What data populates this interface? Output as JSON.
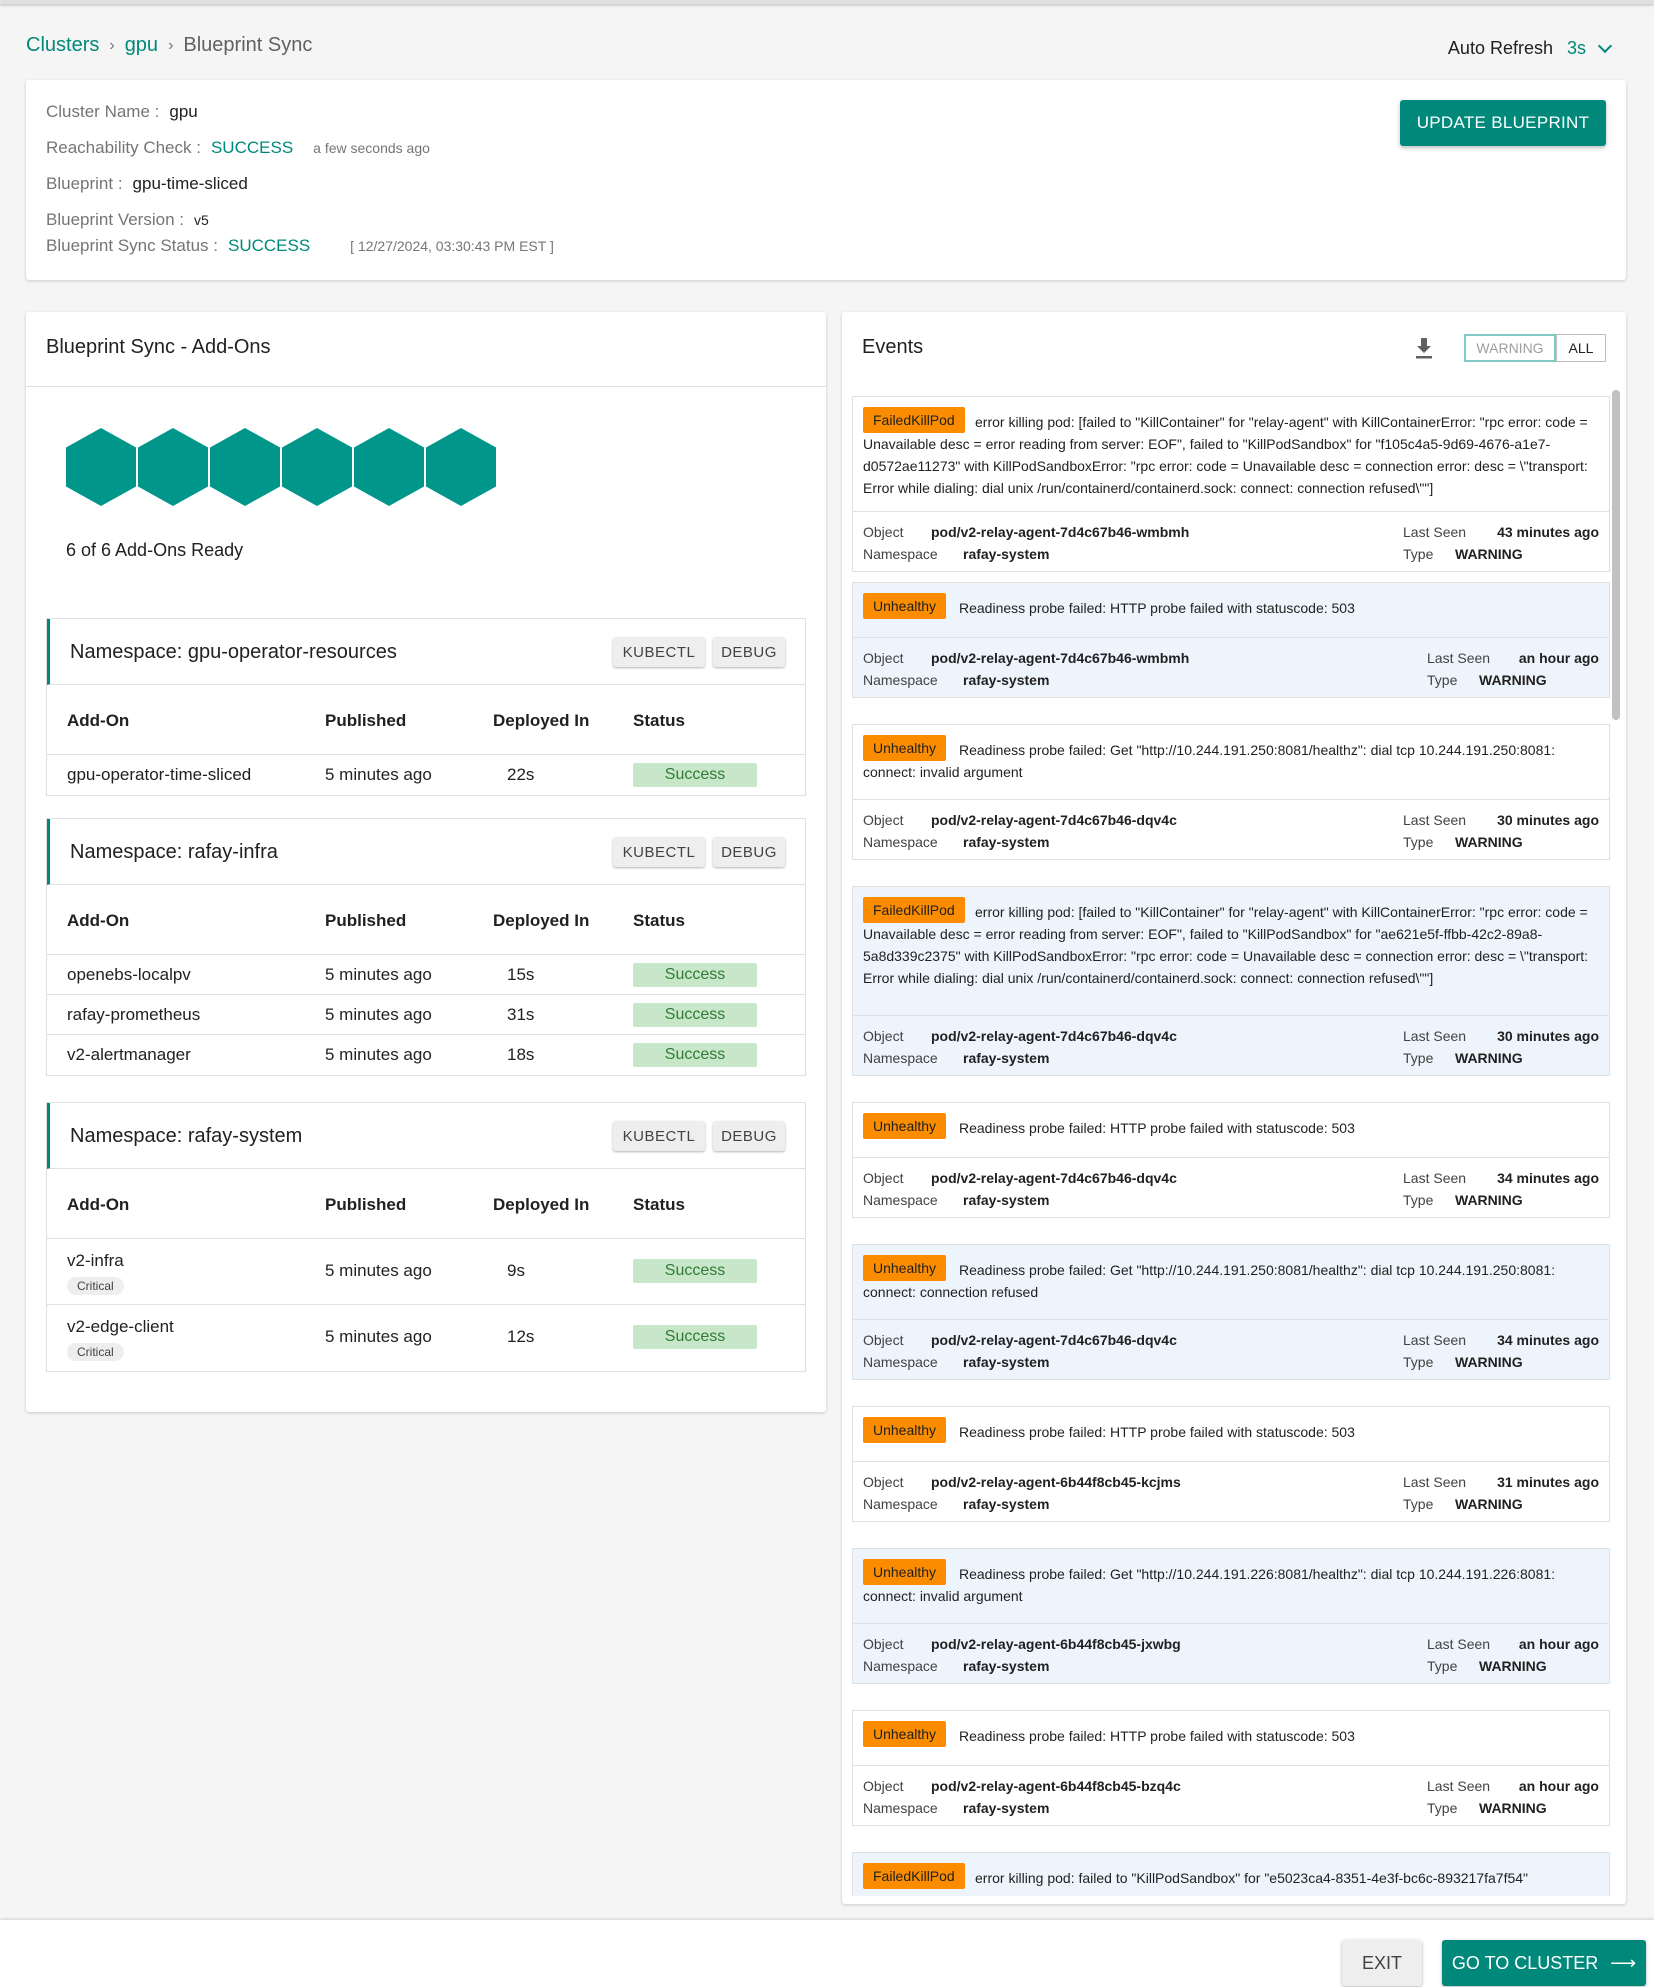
{
  "breadcrumb": {
    "clusters": "Clusters",
    "cluster": "gpu",
    "current": "Blueprint Sync",
    "sep": "›"
  },
  "auto_refresh": {
    "label": "Auto Refresh",
    "value": "3s"
  },
  "cluster_info": {
    "name_label": "Cluster Name :",
    "name": "gpu",
    "reach_label": "Reachability Check :",
    "reach_status": "SUCCESS",
    "reach_time": "a few seconds ago",
    "blueprint_label": "Blueprint :",
    "blueprint": "gpu-time-sliced",
    "version_label": "Blueprint Version :",
    "version": "v5",
    "sync_label": "Blueprint Sync Status :",
    "sync_status": "SUCCESS",
    "sync_time": "[ 12/27/2024, 03:30:43 PM EST ]",
    "update_button": "UPDATE BLUEPRINT"
  },
  "addons": {
    "title": "Blueprint Sync - Add-Ons",
    "ready_text": "6 of 6 Add-Ons Ready",
    "hex_count": 6,
    "hex_color": "#00968a",
    "kubectl_label": "KUBECTL",
    "debug_label": "DEBUG",
    "headers": {
      "addon": "Add-On",
      "published": "Published",
      "deployed": "Deployed In",
      "status": "Status"
    },
    "namespaces": [
      {
        "title": "Namespace: gpu-operator-resources",
        "rows": [
          {
            "name": "gpu-operator-time-sliced",
            "published": "5 minutes ago",
            "deployed": "22s",
            "status": "Success"
          }
        ]
      },
      {
        "title": "Namespace: rafay-infra",
        "rows": [
          {
            "name": "openebs-localpv",
            "published": "5 minutes ago",
            "deployed": "15s",
            "status": "Success"
          },
          {
            "name": "rafay-prometheus",
            "published": "5 minutes ago",
            "deployed": "31s",
            "status": "Success"
          },
          {
            "name": "v2-alertmanager",
            "published": "5 minutes ago",
            "deployed": "18s",
            "status": "Success"
          }
        ]
      },
      {
        "title": "Namespace: rafay-system",
        "rows": [
          {
            "name": "v2-infra",
            "badge": "Critical",
            "published": "5 minutes ago",
            "deployed": "9s",
            "status": "Success"
          },
          {
            "name": "v2-edge-client",
            "badge": "Critical",
            "published": "5 minutes ago",
            "deployed": "12s",
            "status": "Success"
          }
        ]
      }
    ]
  },
  "events": {
    "title": "Events",
    "filter_warning": "WARNING",
    "filter_all": "ALL",
    "labels": {
      "object": "Object",
      "namespace": "Namespace",
      "last_seen": "Last Seen",
      "type": "Type"
    },
    "items": [
      {
        "reason": "FailedKillPod",
        "message": "error killing pod: [failed to \"KillContainer\" for \"relay-agent\" with KillContainerError: \"rpc error: code = Unavailable desc = error reading from server: EOF\", failed to \"KillPodSandbox\" for \"f105c4a5-9d69-4676-a1e7-d0572ae11273\" with KillPodSandboxError: \"rpc error: code = Unavailable desc = connection error: desc = \\\"transport: Error while dialing: dial unix /run/containerd/containerd.sock: connect: connection refused\\\"\"]",
        "object": "pod/v2-relay-agent-7d4c67b46-wmbmh",
        "namespace": "rafay-system",
        "last_seen": "43 minutes ago",
        "type": "WARNING"
      },
      {
        "reason": "Unhealthy",
        "message": "Readiness probe failed: HTTP probe failed with statuscode: 503",
        "object": "pod/v2-relay-agent-7d4c67b46-wmbmh",
        "namespace": "rafay-system",
        "last_seen": "an hour ago",
        "type": "WARNING"
      },
      {
        "reason": "Unhealthy",
        "message": "Readiness probe failed: Get \"http://10.244.191.250:8081/healthz\": dial tcp 10.244.191.250:8081: connect: invalid argument",
        "object": "pod/v2-relay-agent-7d4c67b46-dqv4c",
        "namespace": "rafay-system",
        "last_seen": "30 minutes ago",
        "type": "WARNING"
      },
      {
        "reason": "FailedKillPod",
        "message": "error killing pod: [failed to \"KillContainer\" for \"relay-agent\" with KillContainerError: \"rpc error: code = Unavailable desc = error reading from server: EOF\", failed to \"KillPodSandbox\" for \"ae621e5f-ffbb-42c2-89a8-5a8d339c2375\" with KillPodSandboxError: \"rpc error: code = Unavailable desc = connection error: desc = \\\"transport: Error while dialing: dial unix /run/containerd/containerd.sock: connect: connection refused\\\"\"]",
        "object": "pod/v2-relay-agent-7d4c67b46-dqv4c",
        "namespace": "rafay-system",
        "last_seen": "30 minutes ago",
        "type": "WARNING"
      },
      {
        "reason": "Unhealthy",
        "message": "Readiness probe failed: HTTP probe failed with statuscode: 503",
        "object": "pod/v2-relay-agent-7d4c67b46-dqv4c",
        "namespace": "rafay-system",
        "last_seen": "34 minutes ago",
        "type": "WARNING"
      },
      {
        "reason": "Unhealthy",
        "message": "Readiness probe failed: Get \"http://10.244.191.250:8081/healthz\": dial tcp 10.244.191.250:8081: connect: connection refused",
        "object": "pod/v2-relay-agent-7d4c67b46-dqv4c",
        "namespace": "rafay-system",
        "last_seen": "34 minutes ago",
        "type": "WARNING"
      },
      {
        "reason": "Unhealthy",
        "message": "Readiness probe failed: HTTP probe failed with statuscode: 503",
        "object": "pod/v2-relay-agent-6b44f8cb45-kcjms",
        "namespace": "rafay-system",
        "last_seen": "31 minutes ago",
        "type": "WARNING"
      },
      {
        "reason": "Unhealthy",
        "message": "Readiness probe failed: Get \"http://10.244.191.226:8081/healthz\": dial tcp 10.244.191.226:8081: connect: invalid argument",
        "object": "pod/v2-relay-agent-6b44f8cb45-jxwbg",
        "namespace": "rafay-system",
        "last_seen": "an hour ago",
        "type": "WARNING"
      },
      {
        "reason": "Unhealthy",
        "message": "Readiness probe failed: HTTP probe failed with statuscode: 503",
        "object": "pod/v2-relay-agent-6b44f8cb45-bzq4c",
        "namespace": "rafay-system",
        "last_seen": "an hour ago",
        "type": "WARNING"
      },
      {
        "reason": "FailedKillPod",
        "message": "error killing pod: failed to \"KillPodSandbox\" for \"e5023ca4-8351-4e3f-bc6c-893217fa7f54\"",
        "object": "",
        "namespace": "",
        "last_seen": "",
        "type": ""
      }
    ]
  },
  "footer": {
    "exit": "EXIT",
    "go": "GO TO CLUSTER",
    "arrow": "⟶"
  }
}
